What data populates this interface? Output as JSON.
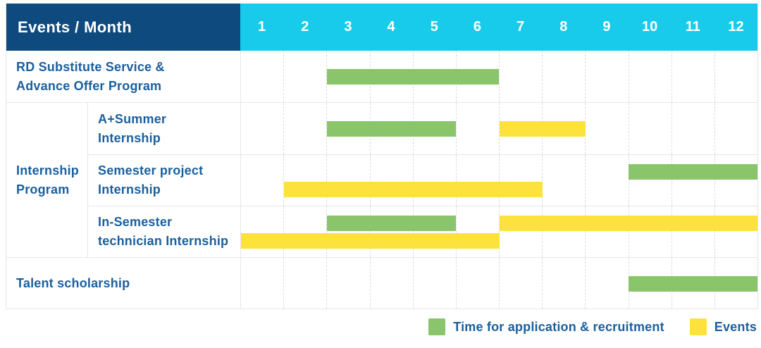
{
  "colors": {
    "header_navy": "#0F4A7E",
    "header_cyan": "#19CBEB",
    "label_text_blue": "#1A5F9E",
    "grid_line": "#E5E5E5",
    "bar_green": "#8AC46B",
    "bar_yellow": "#FDE23E",
    "background": "#FFFFFF"
  },
  "chart_data": {
    "type": "table",
    "subtype": "gantt-monthly-timeline",
    "title": "Events / Month",
    "x_axis": {
      "label": "Month",
      "ticks": [
        "1",
        "2",
        "3",
        "4",
        "5",
        "6",
        "7",
        "8",
        "9",
        "10",
        "11",
        "12"
      ],
      "range": [
        1,
        12
      ],
      "grid": "dashed-vertical"
    },
    "legend": [
      {
        "kind": "application",
        "label": "Time for application & recruitment",
        "color": "#8AC46B"
      },
      {
        "kind": "event",
        "label": "Events",
        "color": "#FDE23E"
      }
    ],
    "blocks": [
      {
        "type": "row",
        "name": "rd-substitute-service",
        "label_lines": [
          "RD Substitute Service &",
          "Advance Offer Program"
        ],
        "lines": [
          [
            {
              "kind": "application",
              "start": 3,
              "end": 6
            }
          ]
        ]
      },
      {
        "type": "group",
        "name": "internship-program",
        "label_lines": [
          "Internship",
          "Program"
        ],
        "rows": [
          {
            "name": "a-plus-summer-internship",
            "label_lines": [
              "A+Summer",
              "Internship"
            ],
            "lines": [
              [
                {
                  "kind": "application",
                  "start": 3,
                  "end": 5
                },
                {
                  "kind": "event",
                  "start": 7,
                  "end": 8
                }
              ]
            ]
          },
          {
            "name": "semester-project-internship",
            "label_lines": [
              "Semester project",
              "Internship"
            ],
            "lines": [
              [
                {
                  "kind": "application",
                  "start": 10,
                  "end": 12
                }
              ],
              [
                {
                  "kind": "event",
                  "start": 2,
                  "end": 7
                }
              ]
            ]
          },
          {
            "name": "in-semester-technician-internship",
            "label_lines": [
              "In-Semester",
              "technician Internship"
            ],
            "lines": [
              [
                {
                  "kind": "application",
                  "start": 3,
                  "end": 5
                },
                {
                  "kind": "event",
                  "start": 7,
                  "end": 12
                }
              ],
              [
                {
                  "kind": "event",
                  "start": 1,
                  "end": 6
                }
              ]
            ]
          }
        ]
      },
      {
        "type": "row",
        "name": "talent-scholarship",
        "label_lines": [
          "Talent scholarship"
        ],
        "lines": [
          [
            {
              "kind": "application",
              "start": 10,
              "end": 12
            }
          ]
        ]
      }
    ]
  }
}
